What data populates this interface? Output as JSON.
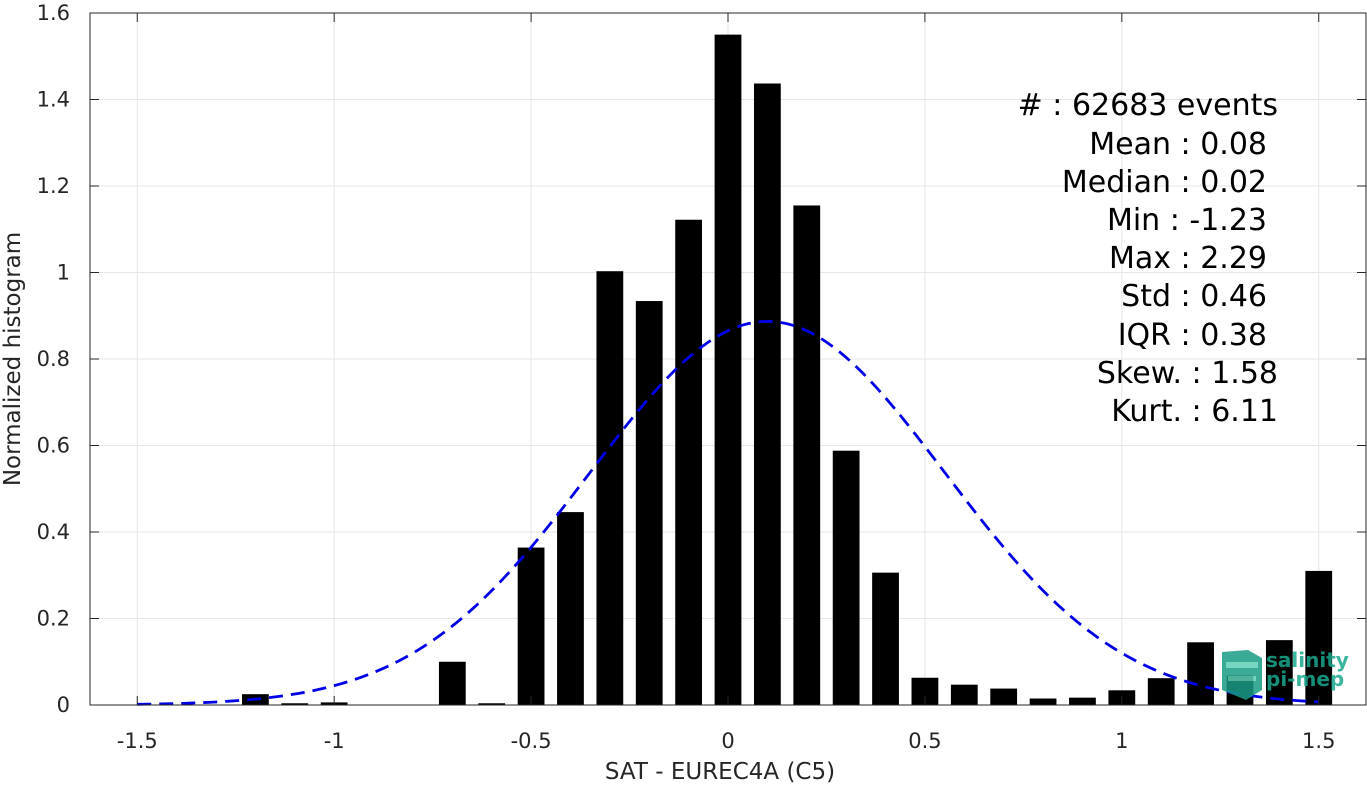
{
  "chart_data": {
    "type": "bar",
    "xlabel": "SAT - EUREC4A (C5)",
    "ylabel": "Normalized histogram",
    "xlim": [
      -1.62,
      1.62
    ],
    "ylim": [
      0,
      1.6
    ],
    "xticks": [
      -1.5,
      -1,
      -0.5,
      0,
      0.5,
      1,
      1.5
    ],
    "xtick_labels": [
      "-1.5",
      "-1",
      "-0.5",
      "0",
      "0.5",
      "1",
      "1.5"
    ],
    "yticks": [
      0,
      0.2,
      0.4,
      0.6,
      0.8,
      1,
      1.2,
      1.4,
      1.6
    ],
    "ytick_labels": [
      "0",
      "0.2",
      "0.4",
      "0.6",
      "0.8",
      "1",
      "1.2",
      "1.4",
      "1.6"
    ],
    "grid": true,
    "bar_color": "#000000",
    "bin_width": 0.1,
    "bins": [
      {
        "x": -1.2,
        "y": 0.025
      },
      {
        "x": -1.1,
        "y": 0.004
      },
      {
        "x": -1.0,
        "y": 0.006
      },
      {
        "x": -0.7,
        "y": 0.1
      },
      {
        "x": -0.6,
        "y": 0.004
      },
      {
        "x": -0.5,
        "y": 0.364
      },
      {
        "x": -0.4,
        "y": 0.446
      },
      {
        "x": -0.3,
        "y": 1.003
      },
      {
        "x": -0.2,
        "y": 0.934
      },
      {
        "x": -0.1,
        "y": 1.122
      },
      {
        "x": 0.0,
        "y": 1.55
      },
      {
        "x": 0.1,
        "y": 1.437
      },
      {
        "x": 0.2,
        "y": 1.155
      },
      {
        "x": 0.3,
        "y": 0.588
      },
      {
        "x": 0.4,
        "y": 0.306
      },
      {
        "x": 0.5,
        "y": 0.063
      },
      {
        "x": 0.6,
        "y": 0.047
      },
      {
        "x": 0.7,
        "y": 0.038
      },
      {
        "x": 0.8,
        "y": 0.015
      },
      {
        "x": 0.9,
        "y": 0.017
      },
      {
        "x": 1.0,
        "y": 0.034
      },
      {
        "x": 1.1,
        "y": 0.062
      },
      {
        "x": 1.2,
        "y": 0.145
      },
      {
        "x": 1.3,
        "y": 0.068
      },
      {
        "x": 1.4,
        "y": 0.15
      },
      {
        "x": 1.5,
        "y": 0.31
      }
    ],
    "fit": {
      "type": "gaussian",
      "mean": 0.1,
      "std": 0.45,
      "peak": 0.887,
      "x_range": [
        -1.5,
        1.5
      ],
      "color": "#0000e6",
      "style": "dashed"
    },
    "stats": {
      "count": {
        "label": "#  : 62683 events"
      },
      "lines": [
        "Mean : 0.08",
        "Median : 0.02",
        "Min : -1.23",
        "Max : 2.29",
        "Std : 0.46",
        "IQR : 0.38",
        "Skew. : 1.58",
        "Kurt. : 6.11"
      ]
    }
  },
  "logo": {
    "line1": "salinity",
    "line2": "pi-mep",
    "color": "#1aa88e"
  }
}
